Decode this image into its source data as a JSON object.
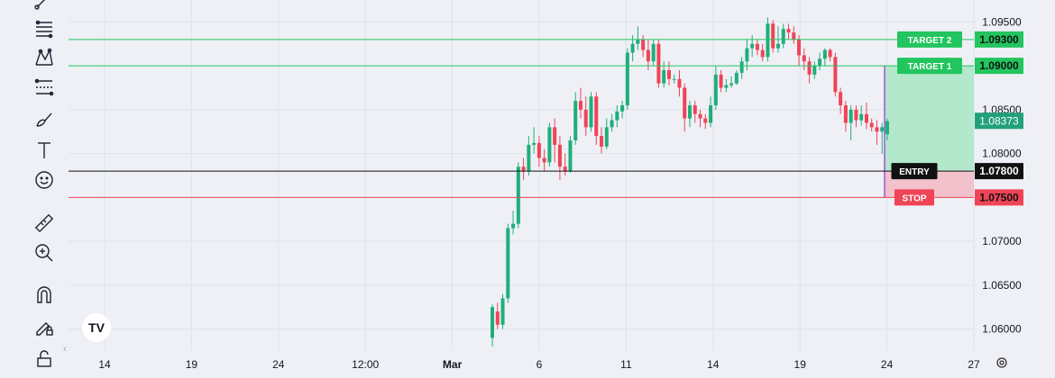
{
  "toolbar": {
    "tools": [
      {
        "name": "trend-line-tool-icon"
      },
      {
        "name": "fib-retracement-tool-icon"
      },
      {
        "name": "pattern-tool-icon"
      },
      {
        "name": "projection-tool-icon"
      },
      {
        "name": "brush-tool-icon"
      },
      {
        "name": "text-tool-icon"
      },
      {
        "name": "emoji-tool-icon"
      },
      {
        "name": "ruler-tool-icon"
      },
      {
        "name": "zoom-in-tool-icon"
      },
      {
        "name": "magnet-tool-icon"
      },
      {
        "name": "lock-drawings-tool-icon"
      },
      {
        "name": "lock-tool-icon"
      }
    ],
    "collapse_glyph": "‹"
  },
  "chart_data": {
    "type": "candlestick",
    "x_ticks": [
      "14",
      "19",
      "24",
      "12:00",
      "Mar",
      "6",
      "11",
      "14",
      "19",
      "24",
      "27"
    ],
    "y_ticks": [
      "1.09500",
      "1.08500",
      "1.08000",
      "1.07000",
      "1.06500",
      "1.06000"
    ],
    "ylim": [
      1.0575,
      1.0975
    ],
    "price_lines": [
      {
        "label": "TARGET 2",
        "price": "1.09300",
        "value": 1.093,
        "color": "#22c55e"
      },
      {
        "label": "TARGET 1",
        "price": "1.09000",
        "value": 1.09,
        "color": "#22c55e"
      },
      {
        "label": "ENTRY",
        "price": "1.07800",
        "value": 1.078,
        "color": "#111111"
      },
      {
        "label": "STOP",
        "price": "1.07500",
        "value": 1.075,
        "color": "#ef4456"
      }
    ],
    "current_price": {
      "label": "1.08373",
      "value": 1.08373,
      "color": "#22a07a"
    },
    "colors": {
      "up": "#1fae7a",
      "down": "#ef4456",
      "profit": "#a8e6c4",
      "loss": "#f3b8c4",
      "zone_border": "#9b59d0"
    },
    "candles": [
      [
        1.059,
        1.0625,
        1.058,
        1.0628
      ],
      [
        1.062,
        1.0605,
        1.06,
        1.063
      ],
      [
        1.0605,
        1.0635,
        1.06,
        1.064
      ],
      [
        1.0635,
        1.0715,
        1.063,
        1.072
      ],
      [
        1.0715,
        1.072,
        1.0708,
        1.0735
      ],
      [
        1.072,
        1.0785,
        1.0715,
        1.079
      ],
      [
        1.0785,
        1.078,
        1.077,
        1.0795
      ],
      [
        1.078,
        1.081,
        1.0775,
        1.082
      ],
      [
        1.081,
        1.0812,
        1.08,
        1.083
      ],
      [
        1.0812,
        1.0795,
        1.0785,
        1.082
      ],
      [
        1.0795,
        1.079,
        1.078,
        1.0805
      ],
      [
        1.079,
        1.083,
        1.0785,
        1.0835
      ],
      [
        1.083,
        1.081,
        1.079,
        1.084
      ],
      [
        1.081,
        1.0785,
        1.077,
        1.082
      ],
      [
        1.0785,
        1.078,
        1.0775,
        1.08
      ],
      [
        1.078,
        1.0815,
        1.0778,
        1.082
      ],
      [
        1.0815,
        1.086,
        1.081,
        1.087
      ],
      [
        1.086,
        1.085,
        1.084,
        1.0875
      ],
      [
        1.085,
        1.083,
        1.082,
        1.0865
      ],
      [
        1.083,
        1.0865,
        1.0825,
        1.087
      ],
      [
        1.0865,
        1.082,
        1.081,
        1.087
      ],
      [
        1.082,
        1.0808,
        1.08,
        1.083
      ],
      [
        1.0808,
        1.083,
        1.0805,
        1.084
      ],
      [
        1.083,
        1.0838,
        1.0825,
        1.0845
      ],
      [
        1.0838,
        1.0848,
        1.083,
        1.0855
      ],
      [
        1.0848,
        1.0855,
        1.084,
        1.086
      ],
      [
        1.0855,
        1.0915,
        1.085,
        1.092
      ],
      [
        1.0915,
        1.0925,
        1.0905,
        1.0935
      ],
      [
        1.0925,
        1.093,
        1.0918,
        1.0945
      ],
      [
        1.093,
        1.0918,
        1.091,
        1.0935
      ],
      [
        1.0918,
        1.0905,
        1.0895,
        1.093
      ],
      [
        1.0905,
        1.0925,
        1.09,
        1.093
      ],
      [
        1.0925,
        1.088,
        1.0875,
        1.093
      ],
      [
        1.088,
        1.0895,
        1.0875,
        1.0905
      ],
      [
        1.0895,
        1.0885,
        1.0878,
        1.0905
      ],
      [
        1.0885,
        1.0885,
        1.088,
        1.089
      ],
      [
        1.0885,
        1.0875,
        1.0865,
        1.0895
      ],
      [
        1.0875,
        1.084,
        1.0825,
        1.088
      ],
      [
        1.084,
        1.0855,
        1.083,
        1.086
      ],
      [
        1.0855,
        1.0845,
        1.0835,
        1.086
      ],
      [
        1.0845,
        1.084,
        1.083,
        1.085
      ],
      [
        1.084,
        1.0835,
        1.0828,
        1.0845
      ],
      [
        1.0835,
        1.0855,
        1.083,
        1.0865
      ],
      [
        1.0855,
        1.089,
        1.085,
        1.09
      ],
      [
        1.089,
        1.0875,
        1.087,
        1.0895
      ],
      [
        1.0875,
        1.0878,
        1.087,
        1.0885
      ],
      [
        1.0878,
        1.088,
        1.0875,
        1.0888
      ],
      [
        1.088,
        1.0892,
        1.0878,
        1.0895
      ],
      [
        1.0892,
        1.0905,
        1.0885,
        1.091
      ],
      [
        1.0905,
        1.092,
        1.0895,
        1.093
      ],
      [
        1.092,
        1.0925,
        1.091,
        1.0935
      ],
      [
        1.0925,
        1.0918,
        1.0912,
        1.093
      ],
      [
        1.0918,
        1.091,
        1.0905,
        1.0925
      ],
      [
        1.091,
        1.0948,
        1.0905,
        1.0955
      ],
      [
        1.0948,
        1.092,
        1.0915,
        1.0952
      ],
      [
        1.092,
        1.0925,
        1.0915,
        1.0945
      ],
      [
        1.0925,
        1.0942,
        1.092,
        1.0948
      ],
      [
        1.0942,
        1.0938,
        1.093,
        1.0948
      ],
      [
        1.0938,
        1.093,
        1.0925,
        1.0945
      ],
      [
        1.093,
        1.0912,
        1.09,
        1.0935
      ],
      [
        1.0912,
        1.0905,
        1.0895,
        1.092
      ],
      [
        1.0905,
        1.089,
        1.088,
        1.091
      ],
      [
        1.089,
        1.09,
        1.0885,
        1.0905
      ],
      [
        1.09,
        1.0908,
        1.0895,
        1.0915
      ],
      [
        1.0908,
        1.0918,
        1.09,
        1.092
      ],
      [
        1.0918,
        1.091,
        1.0905,
        1.092
      ],
      [
        1.091,
        1.087,
        1.0865,
        1.0915
      ],
      [
        1.087,
        1.0855,
        1.0845,
        1.0875
      ],
      [
        1.0855,
        1.0835,
        1.0825,
        1.086
      ],
      [
        1.0835,
        1.085,
        1.0815,
        1.0855
      ],
      [
        1.085,
        1.0838,
        1.083,
        1.0855
      ],
      [
        1.0838,
        1.0845,
        1.0832,
        1.0855
      ],
      [
        1.0845,
        1.0835,
        1.0828,
        1.0858
      ],
      [
        1.0835,
        1.083,
        1.0825,
        1.084
      ],
      [
        1.083,
        1.0825,
        1.081,
        1.0838
      ],
      [
        1.0825,
        1.083,
        1.08,
        1.0835
      ],
      [
        1.0822,
        1.0837,
        1.0815,
        1.084
      ]
    ]
  },
  "footer": {
    "settings_icon": "gear-icon"
  }
}
